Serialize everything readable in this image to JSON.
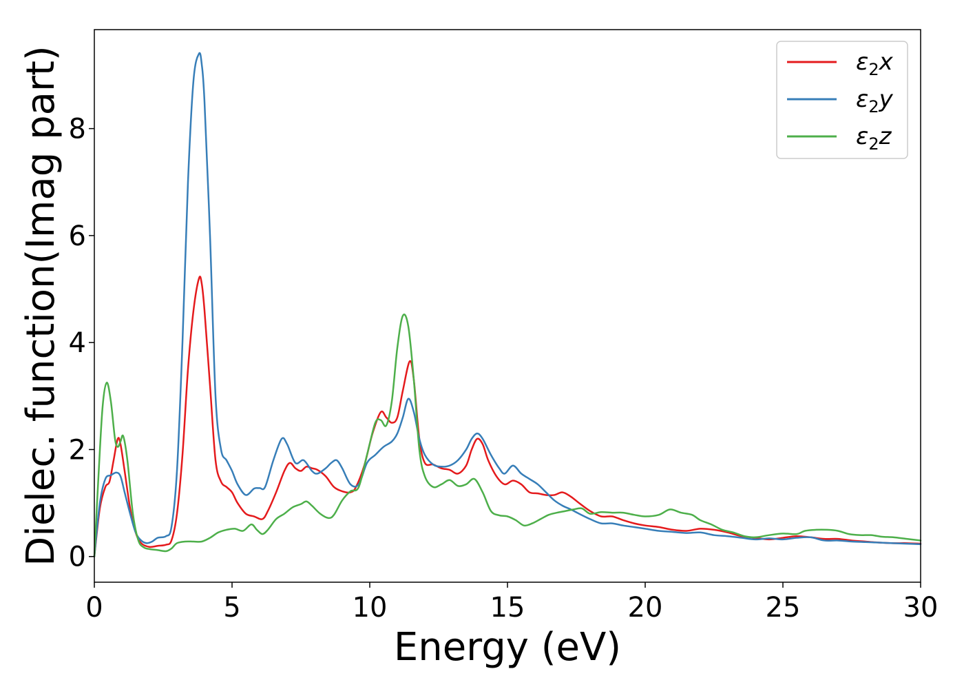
{
  "chart_data": {
    "type": "line",
    "title": "",
    "xlabel": "Energy (eV)",
    "ylabel": "Dielec. function(Imag part)",
    "xlim": [
      0,
      30
    ],
    "ylim": [
      -0.48,
      9.85
    ],
    "xticks": [
      0,
      5,
      10,
      15,
      20,
      25,
      30
    ],
    "yticks": [
      0,
      2,
      4,
      6,
      8
    ],
    "grid": false,
    "legend_position": "top-right",
    "series": [
      {
        "name": "ε₂x",
        "legend": {
          "base": "ε",
          "sub": "2",
          "var": "x"
        },
        "color": "#e41a1c",
        "points": [
          [
            0,
            0
          ],
          [
            0.2,
            0.9
          ],
          [
            0.4,
            1.3
          ],
          [
            0.55,
            1.4
          ],
          [
            0.7,
            1.8
          ],
          [
            0.85,
            2.2
          ],
          [
            0.95,
            2.1
          ],
          [
            1.1,
            1.6
          ],
          [
            1.3,
            0.9
          ],
          [
            1.5,
            0.45
          ],
          [
            1.7,
            0.25
          ],
          [
            2.0,
            0.18
          ],
          [
            2.3,
            0.2
          ],
          [
            2.6,
            0.22
          ],
          [
            2.8,
            0.3
          ],
          [
            3.0,
            0.8
          ],
          [
            3.2,
            1.9
          ],
          [
            3.4,
            3.5
          ],
          [
            3.6,
            4.6
          ],
          [
            3.8,
            5.2
          ],
          [
            3.9,
            5.1
          ],
          [
            4.0,
            4.6
          ],
          [
            4.2,
            3.2
          ],
          [
            4.4,
            1.8
          ],
          [
            4.6,
            1.4
          ],
          [
            4.8,
            1.3
          ],
          [
            5.0,
            1.2
          ],
          [
            5.2,
            1.0
          ],
          [
            5.5,
            0.8
          ],
          [
            5.8,
            0.75
          ],
          [
            6.1,
            0.7
          ],
          [
            6.3,
            0.85
          ],
          [
            6.6,
            1.2
          ],
          [
            6.9,
            1.6
          ],
          [
            7.1,
            1.75
          ],
          [
            7.3,
            1.65
          ],
          [
            7.5,
            1.6
          ],
          [
            7.7,
            1.68
          ],
          [
            7.9,
            1.65
          ],
          [
            8.1,
            1.62
          ],
          [
            8.4,
            1.5
          ],
          [
            8.7,
            1.3
          ],
          [
            9.0,
            1.22
          ],
          [
            9.3,
            1.2
          ],
          [
            9.5,
            1.3
          ],
          [
            9.8,
            1.7
          ],
          [
            10.1,
            2.3
          ],
          [
            10.4,
            2.7
          ],
          [
            10.6,
            2.6
          ],
          [
            10.8,
            2.5
          ],
          [
            11.0,
            2.6
          ],
          [
            11.2,
            3.1
          ],
          [
            11.45,
            3.65
          ],
          [
            11.6,
            3.3
          ],
          [
            11.8,
            2.2
          ],
          [
            12.0,
            1.75
          ],
          [
            12.3,
            1.72
          ],
          [
            12.6,
            1.65
          ],
          [
            12.9,
            1.62
          ],
          [
            13.2,
            1.55
          ],
          [
            13.5,
            1.7
          ],
          [
            13.7,
            2.0
          ],
          [
            13.9,
            2.2
          ],
          [
            14.1,
            2.1
          ],
          [
            14.3,
            1.8
          ],
          [
            14.6,
            1.5
          ],
          [
            14.9,
            1.35
          ],
          [
            15.2,
            1.42
          ],
          [
            15.5,
            1.35
          ],
          [
            15.8,
            1.2
          ],
          [
            16.1,
            1.18
          ],
          [
            16.4,
            1.15
          ],
          [
            16.7,
            1.15
          ],
          [
            17.0,
            1.2
          ],
          [
            17.3,
            1.12
          ],
          [
            17.6,
            1.0
          ],
          [
            18.0,
            0.85
          ],
          [
            18.4,
            0.75
          ],
          [
            18.8,
            0.75
          ],
          [
            19.2,
            0.68
          ],
          [
            19.6,
            0.62
          ],
          [
            20.0,
            0.58
          ],
          [
            20.5,
            0.55
          ],
          [
            21.0,
            0.5
          ],
          [
            21.5,
            0.48
          ],
          [
            22.0,
            0.52
          ],
          [
            22.5,
            0.5
          ],
          [
            23.0,
            0.45
          ],
          [
            23.5,
            0.38
          ],
          [
            24.0,
            0.35
          ],
          [
            24.5,
            0.32
          ],
          [
            25.0,
            0.35
          ],
          [
            25.5,
            0.38
          ],
          [
            26.0,
            0.36
          ],
          [
            26.5,
            0.33
          ],
          [
            27.0,
            0.33
          ],
          [
            27.5,
            0.3
          ],
          [
            28.0,
            0.28
          ],
          [
            28.5,
            0.26
          ],
          [
            29.0,
            0.25
          ],
          [
            29.5,
            0.25
          ],
          [
            30.0,
            0.24
          ]
        ]
      },
      {
        "name": "ε₂y",
        "legend": {
          "base": "ε",
          "sub": "2",
          "var": "y"
        },
        "color": "#377eb8",
        "points": [
          [
            0,
            0
          ],
          [
            0.2,
            1.0
          ],
          [
            0.4,
            1.45
          ],
          [
            0.6,
            1.52
          ],
          [
            0.8,
            1.57
          ],
          [
            0.95,
            1.5
          ],
          [
            1.1,
            1.2
          ],
          [
            1.3,
            0.8
          ],
          [
            1.5,
            0.45
          ],
          [
            1.7,
            0.3
          ],
          [
            1.9,
            0.25
          ],
          [
            2.1,
            0.28
          ],
          [
            2.3,
            0.35
          ],
          [
            2.6,
            0.38
          ],
          [
            2.8,
            0.55
          ],
          [
            3.0,
            1.6
          ],
          [
            3.2,
            4.0
          ],
          [
            3.4,
            7.0
          ],
          [
            3.6,
            8.9
          ],
          [
            3.8,
            9.4
          ],
          [
            3.9,
            9.2
          ],
          [
            4.0,
            8.5
          ],
          [
            4.2,
            6.0
          ],
          [
            4.4,
            3.0
          ],
          [
            4.6,
            2.0
          ],
          [
            4.8,
            1.8
          ],
          [
            5.0,
            1.6
          ],
          [
            5.2,
            1.35
          ],
          [
            5.5,
            1.15
          ],
          [
            5.8,
            1.27
          ],
          [
            6.0,
            1.28
          ],
          [
            6.2,
            1.3
          ],
          [
            6.5,
            1.8
          ],
          [
            6.8,
            2.2
          ],
          [
            7.0,
            2.1
          ],
          [
            7.3,
            1.75
          ],
          [
            7.6,
            1.8
          ],
          [
            7.9,
            1.6
          ],
          [
            8.1,
            1.55
          ],
          [
            8.4,
            1.65
          ],
          [
            8.6,
            1.75
          ],
          [
            8.8,
            1.8
          ],
          [
            9.0,
            1.65
          ],
          [
            9.3,
            1.35
          ],
          [
            9.6,
            1.35
          ],
          [
            9.9,
            1.75
          ],
          [
            10.2,
            1.9
          ],
          [
            10.5,
            2.05
          ],
          [
            10.8,
            2.15
          ],
          [
            11.0,
            2.3
          ],
          [
            11.2,
            2.6
          ],
          [
            11.4,
            2.95
          ],
          [
            11.6,
            2.7
          ],
          [
            11.8,
            2.2
          ],
          [
            12.0,
            1.9
          ],
          [
            12.3,
            1.72
          ],
          [
            12.6,
            1.68
          ],
          [
            12.9,
            1.7
          ],
          [
            13.2,
            1.8
          ],
          [
            13.5,
            2.0
          ],
          [
            13.7,
            2.2
          ],
          [
            13.9,
            2.3
          ],
          [
            14.1,
            2.2
          ],
          [
            14.4,
            1.9
          ],
          [
            14.7,
            1.65
          ],
          [
            14.9,
            1.55
          ],
          [
            15.2,
            1.7
          ],
          [
            15.5,
            1.55
          ],
          [
            15.8,
            1.45
          ],
          [
            16.1,
            1.35
          ],
          [
            16.4,
            1.2
          ],
          [
            16.7,
            1.05
          ],
          [
            17.0,
            0.95
          ],
          [
            17.3,
            0.88
          ],
          [
            17.6,
            0.8
          ],
          [
            18.0,
            0.7
          ],
          [
            18.4,
            0.62
          ],
          [
            18.8,
            0.62
          ],
          [
            19.2,
            0.58
          ],
          [
            19.6,
            0.55
          ],
          [
            20.0,
            0.52
          ],
          [
            20.5,
            0.48
          ],
          [
            21.0,
            0.46
          ],
          [
            21.5,
            0.44
          ],
          [
            22.0,
            0.45
          ],
          [
            22.5,
            0.4
          ],
          [
            23.0,
            0.38
          ],
          [
            23.5,
            0.35
          ],
          [
            24.0,
            0.32
          ],
          [
            24.5,
            0.34
          ],
          [
            25.0,
            0.32
          ],
          [
            25.5,
            0.35
          ],
          [
            26.0,
            0.36
          ],
          [
            26.5,
            0.3
          ],
          [
            27.0,
            0.3
          ],
          [
            27.5,
            0.28
          ],
          [
            28.0,
            0.27
          ],
          [
            28.5,
            0.26
          ],
          [
            29.0,
            0.25
          ],
          [
            29.5,
            0.24
          ],
          [
            30.0,
            0.23
          ]
        ]
      },
      {
        "name": "ε₂z",
        "legend": {
          "base": "ε",
          "sub": "2",
          "var": "z"
        },
        "color": "#4daf4a",
        "points": [
          [
            0,
            0
          ],
          [
            0.15,
            1.5
          ],
          [
            0.3,
            2.8
          ],
          [
            0.45,
            3.25
          ],
          [
            0.6,
            2.9
          ],
          [
            0.75,
            2.2
          ],
          [
            0.85,
            2.05
          ],
          [
            0.95,
            2.15
          ],
          [
            1.05,
            2.25
          ],
          [
            1.2,
            1.8
          ],
          [
            1.4,
            0.8
          ],
          [
            1.6,
            0.3
          ],
          [
            1.8,
            0.17
          ],
          [
            2.0,
            0.14
          ],
          [
            2.3,
            0.12
          ],
          [
            2.6,
            0.1
          ],
          [
            2.8,
            0.15
          ],
          [
            3.0,
            0.25
          ],
          [
            3.3,
            0.28
          ],
          [
            3.6,
            0.28
          ],
          [
            3.9,
            0.28
          ],
          [
            4.2,
            0.35
          ],
          [
            4.5,
            0.45
          ],
          [
            4.8,
            0.5
          ],
          [
            5.1,
            0.52
          ],
          [
            5.4,
            0.48
          ],
          [
            5.7,
            0.6
          ],
          [
            5.9,
            0.5
          ],
          [
            6.1,
            0.42
          ],
          [
            6.3,
            0.5
          ],
          [
            6.6,
            0.7
          ],
          [
            6.9,
            0.8
          ],
          [
            7.2,
            0.92
          ],
          [
            7.5,
            0.98
          ],
          [
            7.7,
            1.03
          ],
          [
            7.9,
            0.95
          ],
          [
            8.2,
            0.8
          ],
          [
            8.5,
            0.72
          ],
          [
            8.7,
            0.78
          ],
          [
            9.0,
            1.05
          ],
          [
            9.3,
            1.22
          ],
          [
            9.6,
            1.3
          ],
          [
            9.9,
            1.9
          ],
          [
            10.2,
            2.5
          ],
          [
            10.4,
            2.55
          ],
          [
            10.6,
            2.45
          ],
          [
            10.8,
            2.9
          ],
          [
            11.0,
            3.9
          ],
          [
            11.2,
            4.5
          ],
          [
            11.4,
            4.3
          ],
          [
            11.6,
            3.3
          ],
          [
            11.8,
            2.0
          ],
          [
            12.0,
            1.5
          ],
          [
            12.3,
            1.3
          ],
          [
            12.6,
            1.35
          ],
          [
            12.9,
            1.43
          ],
          [
            13.2,
            1.32
          ],
          [
            13.5,
            1.35
          ],
          [
            13.8,
            1.45
          ],
          [
            14.1,
            1.2
          ],
          [
            14.4,
            0.85
          ],
          [
            14.7,
            0.77
          ],
          [
            15.0,
            0.75
          ],
          [
            15.3,
            0.68
          ],
          [
            15.6,
            0.58
          ],
          [
            15.9,
            0.62
          ],
          [
            16.2,
            0.7
          ],
          [
            16.5,
            0.78
          ],
          [
            16.8,
            0.82
          ],
          [
            17.1,
            0.85
          ],
          [
            17.4,
            0.88
          ],
          [
            17.7,
            0.9
          ],
          [
            18.0,
            0.8
          ],
          [
            18.4,
            0.83
          ],
          [
            18.8,
            0.82
          ],
          [
            19.2,
            0.82
          ],
          [
            19.6,
            0.78
          ],
          [
            20.0,
            0.75
          ],
          [
            20.5,
            0.78
          ],
          [
            20.9,
            0.88
          ],
          [
            21.3,
            0.82
          ],
          [
            21.7,
            0.78
          ],
          [
            22.0,
            0.68
          ],
          [
            22.4,
            0.6
          ],
          [
            22.8,
            0.5
          ],
          [
            23.2,
            0.45
          ],
          [
            23.6,
            0.38
          ],
          [
            24.0,
            0.36
          ],
          [
            24.5,
            0.4
          ],
          [
            25.0,
            0.43
          ],
          [
            25.5,
            0.42
          ],
          [
            25.8,
            0.48
          ],
          [
            26.2,
            0.5
          ],
          [
            26.6,
            0.5
          ],
          [
            27.0,
            0.48
          ],
          [
            27.4,
            0.42
          ],
          [
            27.8,
            0.4
          ],
          [
            28.2,
            0.4
          ],
          [
            28.6,
            0.37
          ],
          [
            29.0,
            0.36
          ],
          [
            29.5,
            0.33
          ],
          [
            30.0,
            0.3
          ]
        ]
      }
    ]
  }
}
